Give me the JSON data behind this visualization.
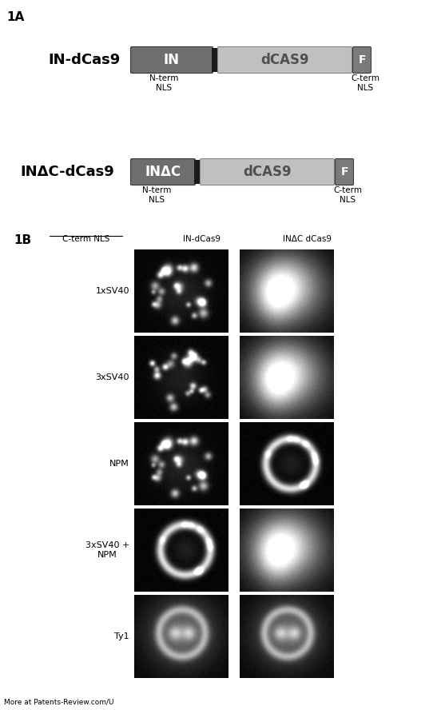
{
  "fig_width": 5.57,
  "fig_height": 8.88,
  "dpi": 100,
  "bg_color": "#ffffff",
  "label_1A": "1A",
  "label_1B": "1B",
  "construct1_name": "IN-dCas9",
  "construct2_name": "INΔC-dCas9",
  "in_box_label": "IN",
  "inc_box_label": "INΔC",
  "dcas9_label": "dCAS9",
  "f_label": "F",
  "nterm_label": "N-term\nNLS",
  "cterm_label": "C-term\nNLS",
  "col_headers": [
    "C-term NLS",
    "IN-dCas9",
    "INΔC dCas9"
  ],
  "row_labels": [
    "1xSV40",
    "3xSV40",
    "NPM",
    "3xSV40 +\nNPM",
    "Ty1"
  ],
  "in_color": "#6e6e6e",
  "dcas9_color": "#c0c0c0",
  "f_color": "#7a7a7a",
  "linker_color": "#1a1a1a",
  "footer_text": "More at Patents-Review.com/U"
}
